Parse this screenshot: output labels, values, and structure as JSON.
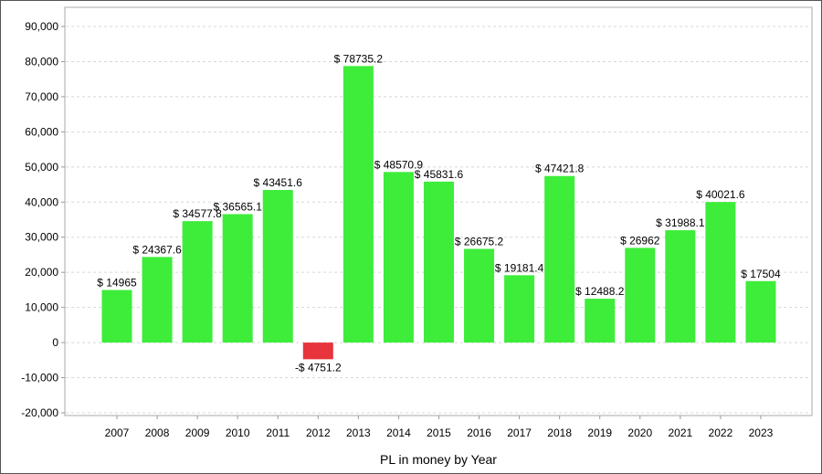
{
  "chart_data": {
    "type": "bar",
    "title": "",
    "xlabel": "PL in money by Year",
    "ylabel": "",
    "ylim": [
      -20000,
      90000
    ],
    "ytick_step": 10000,
    "yticks": [
      "-20,000",
      "-10,000",
      "0",
      "10,000",
      "20,000",
      "30,000",
      "40,000",
      "50,000",
      "60,000",
      "70,000",
      "80,000",
      "90,000"
    ],
    "grid": true,
    "legend": "none",
    "colors": {
      "positive": "#3ded3a",
      "negative": "#e8343c",
      "grid": "#d8d8d8",
      "axis": "#999999"
    },
    "categories": [
      "2007",
      "2008",
      "2009",
      "2010",
      "2011",
      "2012",
      "2013",
      "2014",
      "2015",
      "2016",
      "2017",
      "2018",
      "2019",
      "2020",
      "2021",
      "2022",
      "2023"
    ],
    "values": [
      14965,
      24367.6,
      34577.8,
      36565.1,
      43451.6,
      -4751.2,
      78735.2,
      48570.9,
      45831.6,
      26675.2,
      19181.4,
      47421.8,
      12488.2,
      26962,
      31988.1,
      40021.6,
      17504
    ],
    "data_labels": [
      "$ 14965",
      "$ 24367.6",
      "$ 34577.8",
      "$ 36565.1",
      "$ 43451.6",
      "-$ 4751.2",
      "$ 78735.2",
      "$ 48570.9",
      "$ 45831.6",
      "$ 26675.2",
      "$ 19181.4",
      "$ 47421.8",
      "$ 12488.2",
      "$ 26962",
      "$ 31988.1",
      "$ 40021.6",
      "$ 17504"
    ]
  }
}
